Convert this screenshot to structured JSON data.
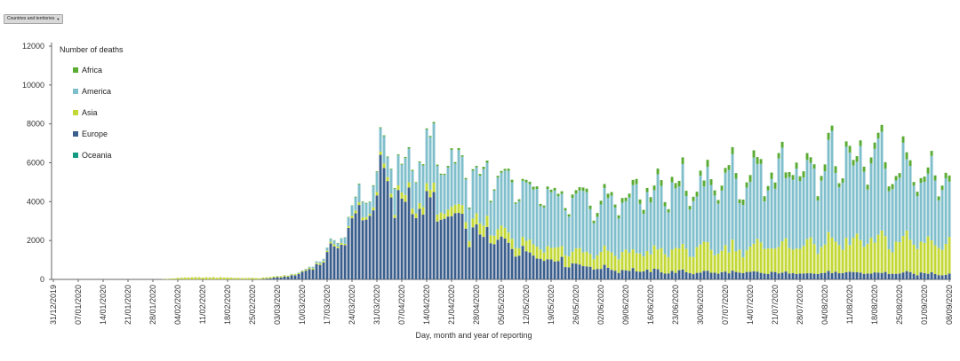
{
  "controls": {
    "dropdown_label": "Countries and territories",
    "dropdown_icon": "chevron-down-icon"
  },
  "chart_data": {
    "type": "bar",
    "stacked": true,
    "xlabel": "Day, month and year of reporting",
    "ylabel": "",
    "ylim": [
      0,
      12000
    ],
    "yticks": [
      0,
      2000,
      4000,
      6000,
      8000,
      10000,
      12000
    ],
    "legend_title": "Number of deaths",
    "legend_position": "top-left",
    "grid": false,
    "start_date": "31/12/2019",
    "x_tick_labels": [
      "31/12/2019",
      "07/01/2020",
      "14/01/2020",
      "21/01/2020",
      "28/01/2020",
      "04/02/2020",
      "11/02/2020",
      "18/02/2020",
      "25/02/2020",
      "03/03/2020",
      "10/03/2020",
      "17/03/2020",
      "24/03/2020",
      "31/03/2020",
      "07/04/2020",
      "14/04/2020",
      "21/04/2020",
      "28/04/2020",
      "05/05/2020",
      "12/05/2020",
      "19/05/2020",
      "26/05/2020",
      "02/06/2020",
      "09/06/2020",
      "16/06/2020",
      "23/06/2020",
      "30/06/2020",
      "07/07/2020",
      "14/07/2020",
      "21/07/2020",
      "28/07/2020",
      "04/08/2020",
      "11/08/2020",
      "18/08/2020",
      "25/08/2020",
      "01/09/2020",
      "08/09/2020"
    ],
    "series": [
      {
        "name": "Africa",
        "color": "#5aab32"
      },
      {
        "name": "America",
        "color": "#7fbfcc"
      },
      {
        "name": "Asia",
        "color": "#c3d835"
      },
      {
        "name": "Europe",
        "color": "#3b5e8c"
      },
      {
        "name": "Oceania",
        "color": "#149b83"
      }
    ],
    "keypoints": {
      "Europe": [
        [
          0,
          0
        ],
        [
          58,
          0
        ],
        [
          68,
          200
        ],
        [
          75,
          800
        ],
        [
          83,
          2600
        ],
        [
          90,
          4300
        ],
        [
          92,
          5200
        ],
        [
          96,
          4300
        ],
        [
          104,
          4000
        ],
        [
          112,
          3200
        ],
        [
          118,
          2500
        ],
        [
          126,
          2000
        ],
        [
          133,
          1500
        ],
        [
          140,
          1100
        ],
        [
          150,
          700
        ],
        [
          160,
          500
        ],
        [
          175,
          400
        ],
        [
          200,
          350
        ],
        [
          230,
          350
        ],
        [
          252,
          300
        ]
      ],
      "Asia": [
        [
          0,
          0
        ],
        [
          30,
          0
        ],
        [
          34,
          60
        ],
        [
          40,
          120
        ],
        [
          45,
          100
        ],
        [
          52,
          80
        ],
        [
          60,
          60
        ],
        [
          70,
          50
        ],
        [
          80,
          90
        ],
        [
          90,
          150
        ],
        [
          100,
          300
        ],
        [
          110,
          400
        ],
        [
          118,
          500
        ],
        [
          126,
          550
        ],
        [
          135,
          600
        ],
        [
          145,
          700
        ],
        [
          155,
          800
        ],
        [
          165,
          1000
        ],
        [
          180,
          1200
        ],
        [
          195,
          1300
        ],
        [
          205,
          1500
        ],
        [
          220,
          1600
        ],
        [
          235,
          1700
        ],
        [
          252,
          1700
        ]
      ],
      "America": [
        [
          0,
          0
        ],
        [
          64,
          0
        ],
        [
          70,
          30
        ],
        [
          75,
          80
        ],
        [
          80,
          200
        ],
        [
          87,
          800
        ],
        [
          95,
          1300
        ],
        [
          102,
          2200
        ],
        [
          107,
          2700
        ],
        [
          112,
          2500
        ],
        [
          120,
          2500
        ],
        [
          127,
          2600
        ],
        [
          135,
          2700
        ],
        [
          145,
          2500
        ],
        [
          155,
          2600
        ],
        [
          165,
          3000
        ],
        [
          175,
          3200
        ],
        [
          185,
          3400
        ],
        [
          195,
          3600
        ],
        [
          205,
          3800
        ],
        [
          215,
          4200
        ],
        [
          225,
          4100
        ],
        [
          235,
          4000
        ],
        [
          245,
          3700
        ],
        [
          252,
          3500
        ]
      ],
      "Africa": [
        [
          0,
          0
        ],
        [
          70,
          0
        ],
        [
          80,
          20
        ],
        [
          95,
          50
        ],
        [
          110,
          70
        ],
        [
          125,
          100
        ],
        [
          140,
          130
        ],
        [
          155,
          200
        ],
        [
          170,
          250
        ],
        [
          185,
          280
        ],
        [
          200,
          300
        ],
        [
          215,
          300
        ],
        [
          230,
          290
        ],
        [
          252,
          280
        ]
      ],
      "Oceania": [
        [
          0,
          0
        ],
        [
          252,
          2
        ]
      ]
    }
  }
}
